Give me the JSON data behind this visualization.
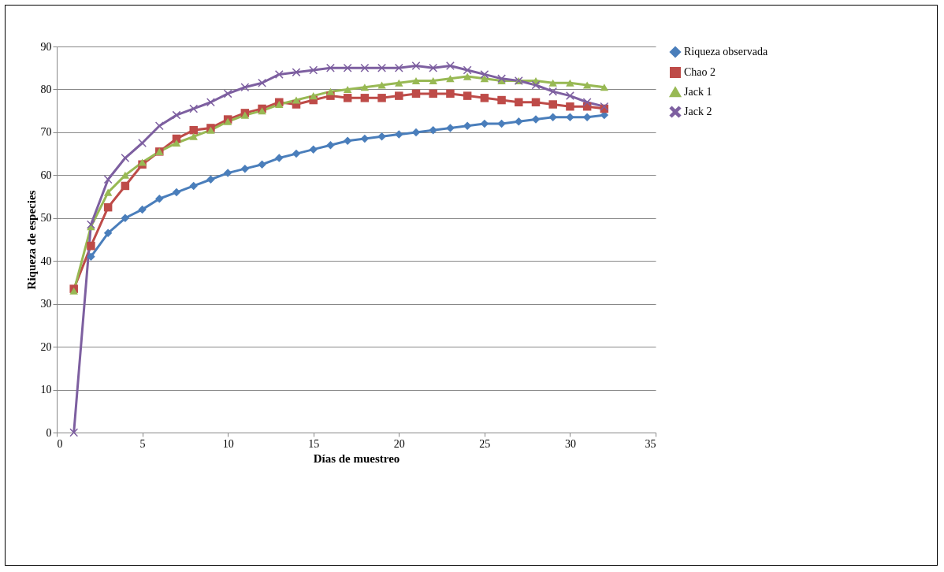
{
  "chart_data": {
    "type": "line",
    "xlabel": "Días de muestreo",
    "ylabel": "Riqueza de especies",
    "x": [
      1,
      2,
      3,
      4,
      5,
      6,
      7,
      8,
      9,
      10,
      11,
      12,
      13,
      14,
      15,
      16,
      17,
      18,
      19,
      20,
      21,
      22,
      23,
      24,
      25,
      26,
      27,
      28,
      29,
      30,
      31,
      32
    ],
    "xlim": [
      0,
      35
    ],
    "xticks": [
      0,
      5,
      10,
      15,
      20,
      25,
      30,
      35
    ],
    "ylim": [
      0,
      90
    ],
    "yticks": [
      0,
      10,
      20,
      30,
      40,
      50,
      60,
      70,
      80,
      90
    ],
    "grid": "y",
    "legend": "right",
    "series": [
      {
        "name": "Riqueza observada",
        "color": "#4a7ebb",
        "marker": "diamond",
        "values": [
          null,
          41,
          46.5,
          50,
          52,
          54.5,
          56,
          57.5,
          59,
          60.5,
          61.5,
          62.5,
          64,
          65,
          66,
          67,
          68,
          68.5,
          69,
          69.5,
          70,
          70.5,
          71,
          71.5,
          72,
          72,
          72.5,
          73,
          73.5,
          73.5,
          73.5,
          74
        ]
      },
      {
        "name": "Chao 2",
        "color": "#be4b48",
        "marker": "square",
        "values": [
          33.5,
          43.5,
          52.5,
          57.5,
          62.5,
          65.5,
          68.5,
          70.5,
          71,
          73,
          74.5,
          75.5,
          77,
          76.5,
          77.5,
          78.5,
          78,
          78,
          78,
          78.5,
          79,
          79,
          79,
          78.5,
          78,
          77.5,
          77,
          77,
          76.5,
          76,
          76,
          75.5
        ]
      },
      {
        "name": "Jack 1",
        "color": "#98b954",
        "marker": "triangle",
        "values": [
          33,
          48,
          56,
          60,
          63,
          65.5,
          67.5,
          69,
          70.5,
          72.5,
          74,
          75,
          76.5,
          77.5,
          78.5,
          79.5,
          80,
          80.5,
          81,
          81.5,
          82,
          82,
          82.5,
          83,
          82.5,
          82,
          82,
          82,
          81.5,
          81.5,
          81,
          80.5
        ]
      },
      {
        "name": "Jack 2",
        "color": "#7d5fa0",
        "marker": "cross",
        "values": [
          0,
          48.5,
          59,
          64,
          67.5,
          71.5,
          74,
          75.5,
          77,
          79,
          80.5,
          81.5,
          83.5,
          84,
          84.5,
          85,
          85,
          85,
          85,
          85,
          85.5,
          85,
          85.5,
          84.5,
          83.5,
          82.5,
          82,
          81,
          79.5,
          78.5,
          77,
          76
        ]
      }
    ]
  }
}
